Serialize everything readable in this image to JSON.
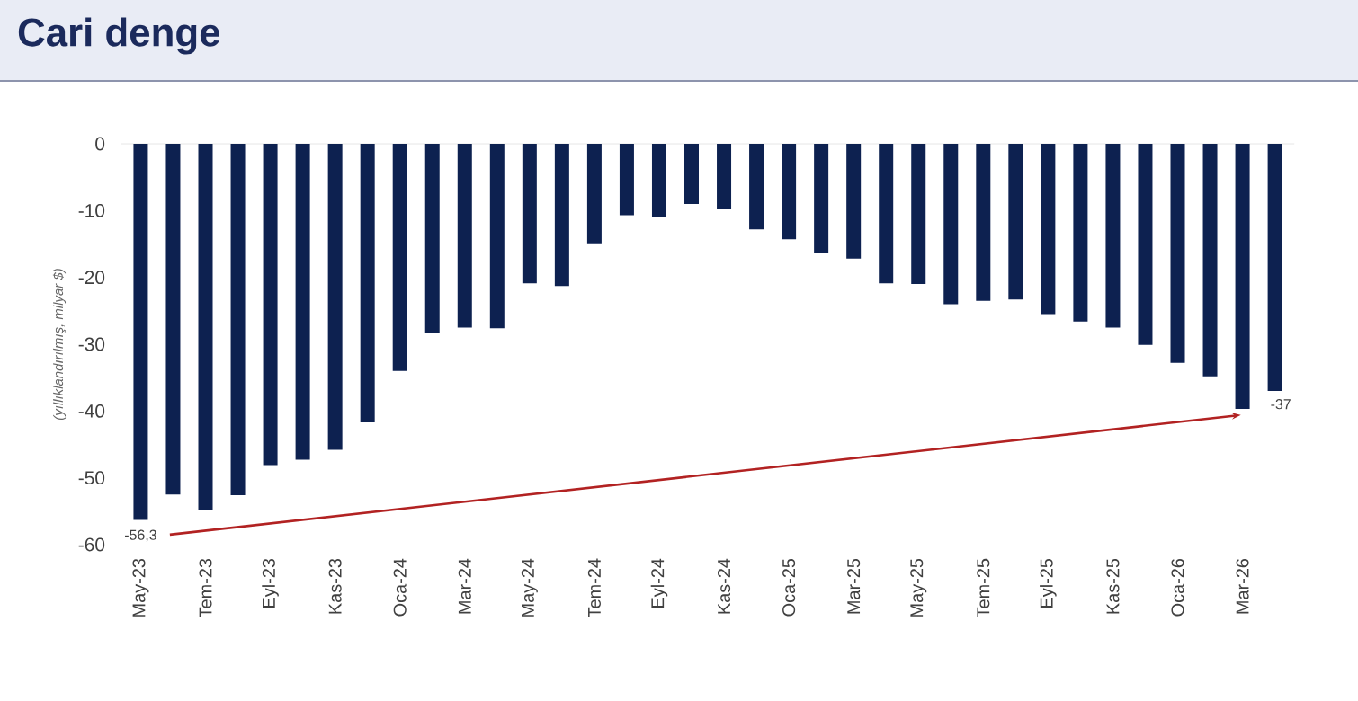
{
  "chart_data": {
    "type": "bar",
    "title": "Cari denge",
    "ylabel": "(yıllıklandırılmış, milyar $)",
    "categories": [
      "May-23",
      null,
      "Tem-23",
      null,
      "Eyl-23",
      null,
      "Kas-23",
      null,
      "Oca-24",
      null,
      "Mar-24",
      null,
      "May-24",
      null,
      "Tem-24",
      null,
      "Eyl-24",
      null,
      "Kas-24",
      null,
      "Oca-25",
      null,
      "Mar-25",
      null,
      "May-25",
      null,
      "Tem-25",
      null,
      "Eyl-25",
      null,
      "Kas-25",
      null,
      "Oca-26",
      null,
      "Mar-26",
      null
    ],
    "values": [
      -56.3,
      -52.5,
      -54.8,
      -52.6,
      -48.1,
      -47.3,
      -45.8,
      -41.7,
      -34.0,
      -28.3,
      -27.5,
      -27.6,
      -20.9,
      -21.3,
      -14.9,
      -10.7,
      -10.9,
      -9.0,
      -9.7,
      -12.8,
      -14.3,
      -16.4,
      -17.2,
      -20.9,
      -21.0,
      -24.0,
      -23.5,
      -23.3,
      -25.5,
      -26.6,
      -27.5,
      -30.1,
      -32.8,
      -34.8,
      -39.7,
      -37
    ],
    "color": "#0d2150",
    "ylim": [
      -60,
      0
    ],
    "yticks": [
      -60,
      -50,
      -40,
      -30,
      -20,
      -10,
      0
    ],
    "annotations": [
      {
        "text": "-56,3",
        "x": "May-23",
        "y": -56.3
      },
      {
        "text": "-37",
        "y": -37
      }
    ]
  }
}
